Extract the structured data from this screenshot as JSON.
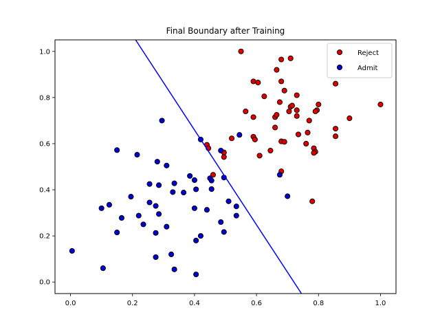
{
  "chart_data": {
    "type": "scatter",
    "title": "Final Boundary after Training",
    "xlabel": "",
    "ylabel": "",
    "xlim": [
      -0.05,
      1.05
    ],
    "ylim": [
      -0.05,
      1.05
    ],
    "xticks": [
      "0.0",
      "0.2",
      "0.4",
      "0.6",
      "0.8",
      "1.0"
    ],
    "yticks": [
      "0.0",
      "0.2",
      "0.4",
      "0.6",
      "0.8",
      "1.0"
    ],
    "grid": false,
    "legend_position": "top-right",
    "series": [
      {
        "name": "Reject",
        "color": "#dd0000",
        "edgecolor": "#000000",
        "points": [
          [
            0.55,
            1.0
          ],
          [
            0.68,
            0.965
          ],
          [
            0.71,
            0.97
          ],
          [
            0.59,
            0.87
          ],
          [
            0.605,
            0.865
          ],
          [
            0.665,
            0.92
          ],
          [
            0.68,
            0.87
          ],
          [
            0.855,
            0.86
          ],
          [
            0.69,
            0.83
          ],
          [
            0.625,
            0.805
          ],
          [
            0.73,
            0.81
          ],
          [
            0.675,
            0.78
          ],
          [
            0.71,
            0.76
          ],
          [
            0.715,
            0.765
          ],
          [
            0.8,
            0.77
          ],
          [
            0.565,
            0.74
          ],
          [
            0.705,
            0.74
          ],
          [
            0.73,
            0.745
          ],
          [
            0.795,
            0.745
          ],
          [
            0.79,
            0.74
          ],
          [
            0.59,
            0.715
          ],
          [
            0.66,
            0.715
          ],
          [
            0.665,
            0.725
          ],
          [
            0.73,
            0.72
          ],
          [
            0.77,
            0.7
          ],
          [
            0.9,
            0.71
          ],
          [
            1.0,
            0.77
          ],
          [
            0.66,
            0.67
          ],
          [
            0.855,
            0.665
          ],
          [
            0.735,
            0.64
          ],
          [
            0.765,
            0.648
          ],
          [
            0.855,
            0.632
          ],
          [
            0.52,
            0.623
          ],
          [
            0.59,
            0.63
          ],
          [
            0.595,
            0.618
          ],
          [
            0.68,
            0.61
          ],
          [
            0.69,
            0.608
          ],
          [
            0.76,
            0.6
          ],
          [
            0.44,
            0.595
          ],
          [
            0.445,
            0.58
          ],
          [
            0.645,
            0.57
          ],
          [
            0.785,
            0.58
          ],
          [
            0.79,
            0.565
          ],
          [
            0.785,
            0.56
          ],
          [
            0.495,
            0.562
          ],
          [
            0.61,
            0.548
          ],
          [
            0.495,
            0.542
          ],
          [
            0.68,
            0.48
          ],
          [
            0.46,
            0.465
          ],
          [
            0.78,
            0.35
          ]
        ]
      },
      {
        "name": "Admit",
        "color": "#0000cc",
        "edgecolor": "#000000",
        "points": [
          [
            0.295,
            0.7
          ],
          [
            0.42,
            0.618
          ],
          [
            0.545,
            0.638
          ],
          [
            0.15,
            0.572
          ],
          [
            0.485,
            0.57
          ],
          [
            0.215,
            0.552
          ],
          [
            0.28,
            0.522
          ],
          [
            0.31,
            0.505
          ],
          [
            0.675,
            0.465
          ],
          [
            0.385,
            0.46
          ],
          [
            0.45,
            0.45
          ],
          [
            0.495,
            0.453
          ],
          [
            0.455,
            0.44
          ],
          [
            0.4,
            0.442
          ],
          [
            0.255,
            0.425
          ],
          [
            0.285,
            0.42
          ],
          [
            0.335,
            0.428
          ],
          [
            0.405,
            0.402
          ],
          [
            0.455,
            0.403
          ],
          [
            0.33,
            0.39
          ],
          [
            0.365,
            0.388
          ],
          [
            0.195,
            0.37
          ],
          [
            0.7,
            0.372
          ],
          [
            0.255,
            0.345
          ],
          [
            0.51,
            0.35
          ],
          [
            0.125,
            0.335
          ],
          [
            0.1,
            0.32
          ],
          [
            0.275,
            0.33
          ],
          [
            0.4,
            0.32
          ],
          [
            0.44,
            0.313
          ],
          [
            0.535,
            0.328
          ],
          [
            0.165,
            0.278
          ],
          [
            0.22,
            0.288
          ],
          [
            0.285,
            0.295
          ],
          [
            0.535,
            0.288
          ],
          [
            0.235,
            0.25
          ],
          [
            0.31,
            0.24
          ],
          [
            0.485,
            0.26
          ],
          [
            0.15,
            0.215
          ],
          [
            0.275,
            0.213
          ],
          [
            0.495,
            0.217
          ],
          [
            0.42,
            0.2
          ],
          [
            0.405,
            0.18
          ],
          [
            0.325,
            0.12
          ],
          [
            0.275,
            0.108
          ],
          [
            0.005,
            0.135
          ],
          [
            0.105,
            0.06
          ],
          [
            0.335,
            0.055
          ],
          [
            0.405,
            0.033
          ]
        ]
      }
    ],
    "boundary_line": {
      "color": "#0000ff",
      "points": [
        [
          0.21,
          1.05
        ],
        [
          0.745,
          -0.05
        ]
      ]
    }
  }
}
